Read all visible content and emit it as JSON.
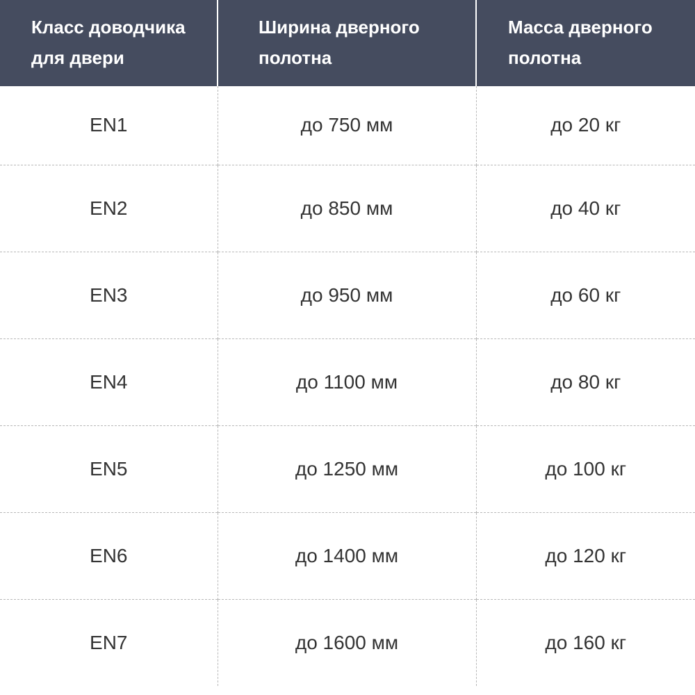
{
  "table": {
    "header": [
      "Класс доводчика\nдля двери",
      "Ширина дверного\nполотна",
      "Масса дверного\nполотна"
    ],
    "rows": [
      [
        "EN1",
        "до 750 мм",
        "до 20 кг"
      ],
      [
        "EN2",
        "до 850 мм",
        "до 40 кг"
      ],
      [
        "EN3",
        "до 950 мм",
        "до 60 кг"
      ],
      [
        "EN4",
        "до 1100 мм",
        "до 80 кг"
      ],
      [
        "EN5",
        "до 1250 мм",
        "до 100 кг"
      ],
      [
        "EN6",
        "до 1400 мм",
        "до 120 кг"
      ],
      [
        "EN7",
        "до 1600 мм",
        "до 160 кг"
      ]
    ]
  }
}
